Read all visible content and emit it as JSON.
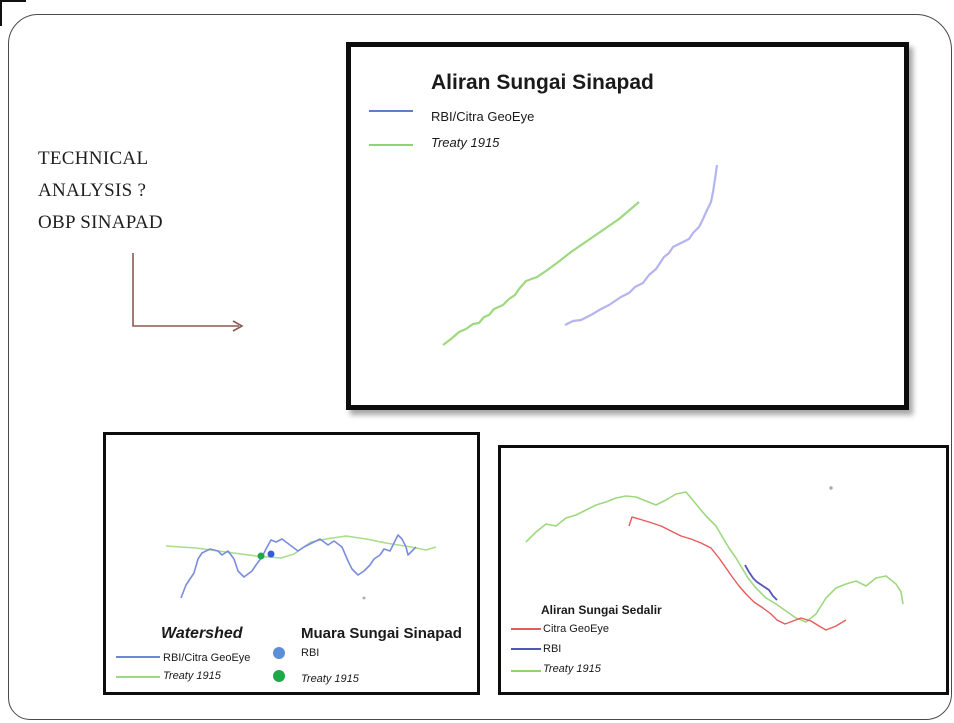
{
  "slide": {
    "title_lines": [
      "TECHNICAL",
      "ANALYSIS ?",
      "OBP SINAPAD"
    ],
    "arrow_color": "#8b5a52"
  },
  "panels": {
    "main": {
      "title": "Aliran Sungai Sinapad",
      "legend": [
        {
          "label": "RBI/Citra GeoEye",
          "color": "#5b7fc9"
        },
        {
          "label": "Treaty 1915",
          "color": "#8fd46f"
        }
      ]
    },
    "watershed": {
      "title": "Watershed",
      "legend": [
        {
          "label": "RBI/Citra GeoEye",
          "color": "#6f86d6"
        },
        {
          "label": "Treaty 1915",
          "color": "#9ed87f"
        }
      ],
      "estuary_title": "Muara Sungai Sinapad",
      "estuary_legend": [
        {
          "label": "RBI",
          "color": "#5b8fd6"
        },
        {
          "label": "Treaty 1915",
          "color": "#1fa84a"
        }
      ]
    },
    "sedalir": {
      "title": "Aliran Sungai Sedalir",
      "legend": [
        {
          "label": "Citra GeoEye",
          "color": "#e55b5b"
        },
        {
          "label": "RBI",
          "color": "#5156b8"
        },
        {
          "label": "Treaty 1915",
          "color": "#8fd46f"
        }
      ]
    }
  }
}
